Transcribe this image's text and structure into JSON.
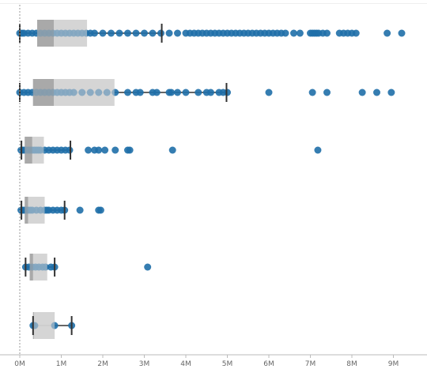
{
  "chart_data": {
    "type": "box",
    "orientation": "horizontal",
    "xlim": [
      0,
      9.5
    ],
    "xticks": [
      {
        "value": 0,
        "label": "0M"
      },
      {
        "value": 1,
        "label": "1M"
      },
      {
        "value": 2,
        "label": "2M"
      },
      {
        "value": 3,
        "label": "3M"
      },
      {
        "value": 4,
        "label": "4M"
      },
      {
        "value": 5,
        "label": "5M"
      },
      {
        "value": 6,
        "label": "6M"
      },
      {
        "value": 7,
        "label": "7M"
      },
      {
        "value": 8,
        "label": "8M"
      },
      {
        "value": 9,
        "label": "9M"
      }
    ],
    "grid": false,
    "colors": {
      "point": "#1f6fa8",
      "box_light": "#cfcfcf",
      "box_dark": "#8f8f8f",
      "whisker": "#333333",
      "axis": "#bbbbbb",
      "baseline": "#999999"
    },
    "rows": [
      {
        "min": 0,
        "q1": 0.42,
        "median": 0.82,
        "q3": 1.62,
        "max": 3.42,
        "points": [
          0,
          0.05,
          0.1,
          0.2,
          0.3,
          0.4,
          0.5,
          0.6,
          0.7,
          0.8,
          0.9,
          1.0,
          1.1,
          1.2,
          1.3,
          1.4,
          1.5,
          1.6,
          1.7,
          1.8,
          2.0,
          2.2,
          2.4,
          2.6,
          2.8,
          3.0,
          3.2,
          3.4,
          3.6,
          3.8,
          4.0,
          4.1,
          4.2,
          4.3,
          4.4,
          4.5,
          4.6,
          4.7,
          4.8,
          4.9,
          5.0,
          5.1,
          5.2,
          5.3,
          5.4,
          5.5,
          5.6,
          5.7,
          5.8,
          5.9,
          6.0,
          6.1,
          6.2,
          6.3,
          6.4,
          6.6,
          6.75,
          7.0,
          7.05,
          7.1,
          7.15,
          7.2,
          7.3,
          7.4,
          7.7,
          7.8,
          7.9,
          8.0,
          8.1,
          8.85,
          9.2
        ]
      },
      {
        "min": 0,
        "q1": 0.32,
        "median": 0.82,
        "q3": 2.28,
        "max": 4.98,
        "points": [
          0,
          0.1,
          0.2,
          0.3,
          0.4,
          0.5,
          0.6,
          0.7,
          0.8,
          0.9,
          1.0,
          1.1,
          1.2,
          1.3,
          1.5,
          1.7,
          1.9,
          2.1,
          2.3,
          2.6,
          2.8,
          2.9,
          3.2,
          3.3,
          3.6,
          3.65,
          3.8,
          4.0,
          4.3,
          4.5,
          4.6,
          4.8,
          4.9,
          5.0,
          6.0,
          7.05,
          7.4,
          8.25,
          8.6,
          8.95
        ]
      },
      {
        "min": 0.04,
        "q1": 0.12,
        "median": 0.3,
        "q3": 0.58,
        "max": 1.22,
        "points": [
          0.03,
          0.06,
          0.1,
          0.15,
          0.2,
          0.25,
          0.3,
          0.35,
          0.4,
          0.45,
          0.5,
          0.6,
          0.7,
          0.8,
          0.9,
          1.0,
          1.1,
          1.2,
          1.65,
          1.8,
          1.9,
          2.05,
          2.3,
          2.6,
          2.65,
          3.68,
          7.18
        ]
      },
      {
        "min": 0.04,
        "q1": 0.12,
        "median": 0.2,
        "q3": 0.6,
        "max": 1.08,
        "points": [
          0.03,
          0.06,
          0.1,
          0.15,
          0.2,
          0.25,
          0.3,
          0.4,
          0.5,
          0.6,
          0.65,
          0.7,
          0.8,
          0.9,
          1.0,
          1.08,
          1.45,
          1.9,
          1.95
        ]
      },
      {
        "min": 0.14,
        "q1": 0.24,
        "median": 0.32,
        "q3": 0.66,
        "max": 0.84,
        "points": [
          0.14,
          0.22,
          0.3,
          0.38,
          0.46,
          0.55,
          0.62,
          0.75,
          0.84,
          3.08
        ]
      },
      {
        "min": 0.32,
        "q1": 0.32,
        "median": 0.34,
        "q3": 0.84,
        "max": 1.25,
        "points": [
          0.32,
          0.36,
          0.84,
          1.25
        ]
      }
    ]
  }
}
